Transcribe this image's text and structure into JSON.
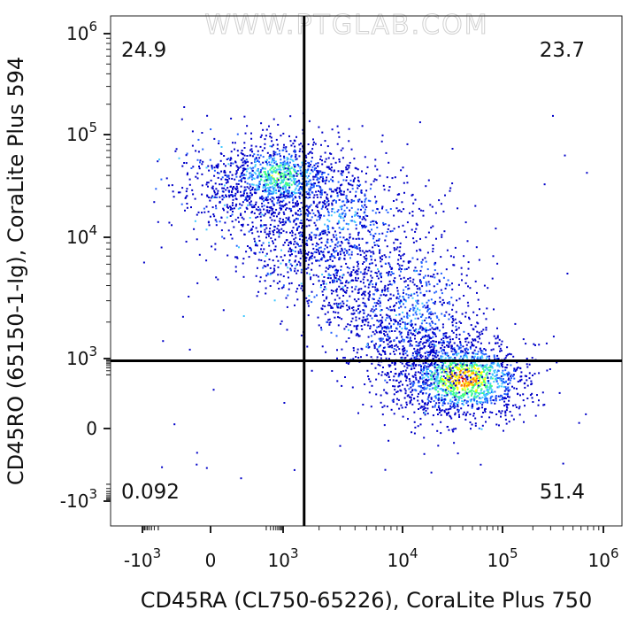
{
  "watermark": "WWW.PTGLAB.COM",
  "chart_data": {
    "type": "scatter",
    "plot_style": "flow-cytometry pseudocolor density dot plot",
    "x_scale": "biexponential",
    "y_scale": "biexponential",
    "xlabel": "CD45RA (CL750-65226), CoraLite Plus 750",
    "ylabel": "CD45RO (65150-1-Ig), CoraLite Plus 594",
    "x_ticks": [
      {
        "base": "-10",
        "exp": "3",
        "value": -1000
      },
      {
        "base": "0",
        "exp": "",
        "value": 0
      },
      {
        "base": "10",
        "exp": "3",
        "value": 1000
      },
      {
        "base": "10",
        "exp": "4",
        "value": 10000
      },
      {
        "base": "10",
        "exp": "5",
        "value": 100000
      },
      {
        "base": "10",
        "exp": "6",
        "value": 1000000
      }
    ],
    "y_ticks": [
      {
        "base": "-10",
        "exp": "3",
        "value": -1000
      },
      {
        "base": "0",
        "exp": "",
        "value": 0
      },
      {
        "base": "10",
        "exp": "3",
        "value": 1000
      },
      {
        "base": "10",
        "exp": "4",
        "value": 10000
      },
      {
        "base": "10",
        "exp": "5",
        "value": 100000
      },
      {
        "base": "10",
        "exp": "6",
        "value": 1000000
      }
    ],
    "xlim": [
      -2000,
      1500000
    ],
    "ylim": [
      -2000,
      1500000
    ],
    "gates": {
      "x_threshold": 1500,
      "y_threshold": 800
    },
    "quadrants": [
      {
        "position": "top-left",
        "label": "24.9",
        "percent": 24.9
      },
      {
        "position": "top-right",
        "label": "23.7",
        "percent": 23.7
      },
      {
        "position": "bottom-left",
        "label": "0.092",
        "percent": 0.092
      },
      {
        "position": "bottom-right",
        "label": "51.4",
        "percent": 51.4
      }
    ],
    "populations": [
      {
        "x_center": 600,
        "y_center": 40000,
        "density": "high"
      },
      {
        "x_center": 3000,
        "y_center": 15000,
        "density": "medium"
      },
      {
        "x_center": 12000,
        "y_center": 2500,
        "density": "medium"
      },
      {
        "x_center": 40000,
        "y_center": 150,
        "density": "highest"
      }
    ],
    "density_colors": [
      "#0000c8",
      "#2060ff",
      "#40c8ff",
      "#40ff80",
      "#ffff00",
      "#ff8000",
      "#ff0000"
    ]
  }
}
